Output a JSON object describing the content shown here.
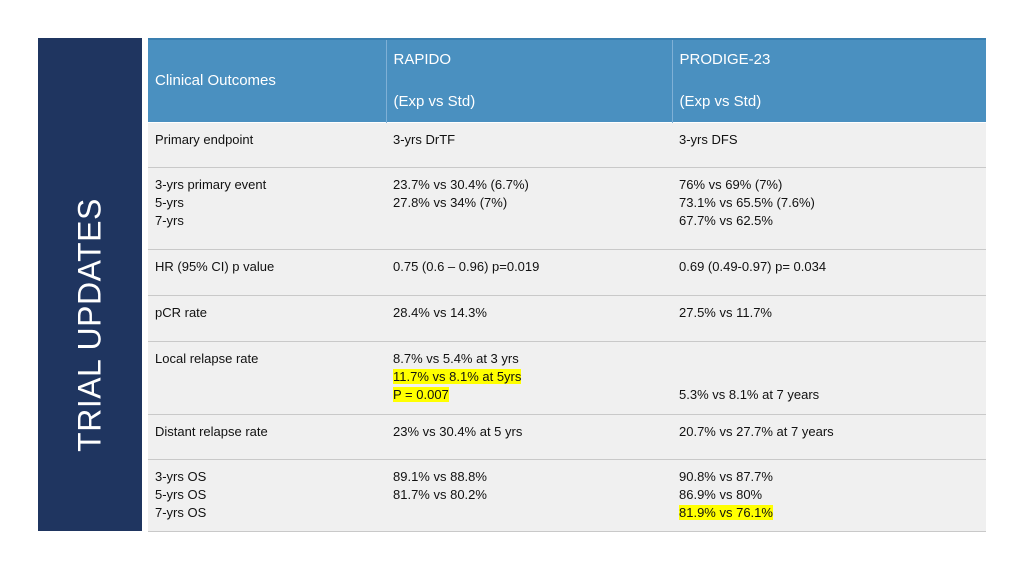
{
  "sidebar": {
    "title": "TRIAL UPDATES"
  },
  "table": {
    "header": {
      "col1": "Clinical Outcomes",
      "col2": [
        "RAPIDO",
        "(Exp vs Std)"
      ],
      "col3": [
        "PRODIGE-23",
        "(Exp vs Std)"
      ]
    },
    "rows": [
      {
        "outcome": [
          "Primary endpoint"
        ],
        "rapido": [
          "3-yrs DrTF"
        ],
        "prodige": [
          "3-yrs DFS"
        ]
      },
      {
        "outcome": [
          "3-yrs primary event",
          "5-yrs",
          "7-yrs"
        ],
        "rapido": [
          "23.7% vs 30.4% (6.7%)",
          "27.8% vs 34% (7%)"
        ],
        "prodige": [
          "76% vs 69% (7%)",
          "73.1% vs 65.5% (7.6%)",
          "67.7% vs 62.5%"
        ]
      },
      {
        "outcome": [
          "HR (95% CI) p value"
        ],
        "rapido": [
          "0.75 (0.6 – 0.96) p=0.019"
        ],
        "prodige": [
          "0.69 (0.49-0.97) p= 0.034"
        ]
      },
      {
        "outcome": [
          "pCR rate"
        ],
        "rapido": [
          "28.4% vs 14.3%"
        ],
        "prodige": [
          "27.5% vs 11.7%"
        ]
      },
      {
        "outcome": [
          "Local relapse rate"
        ],
        "rapido": [
          "8.7% vs 5.4% at 3 yrs",
          "11.7% vs 8.1% at 5yrs",
          "P = 0.007"
        ],
        "prodige": [
          "",
          "",
          "5.3% vs 8.1% at 7 years"
        ]
      },
      {
        "outcome": [
          "Distant relapse rate"
        ],
        "rapido": [
          "23% vs 30.4% at 5 yrs"
        ],
        "prodige": [
          "20.7% vs 27.7% at 7 years"
        ]
      },
      {
        "outcome": [
          "3-yrs OS",
          "5-yrs OS",
          "7-yrs OS"
        ],
        "rapido": [
          "89.1% vs 88.8%",
          "81.7% vs 80.2%"
        ],
        "prodige": [
          "90.8% vs 87.7%",
          "86.9% vs 80%",
          "81.9% vs 76.1%"
        ]
      }
    ]
  },
  "colors": {
    "sidebar": "#1f3560",
    "header": "#4a90c0",
    "row": "#f0f0f0",
    "highlight": "#ffff00"
  }
}
